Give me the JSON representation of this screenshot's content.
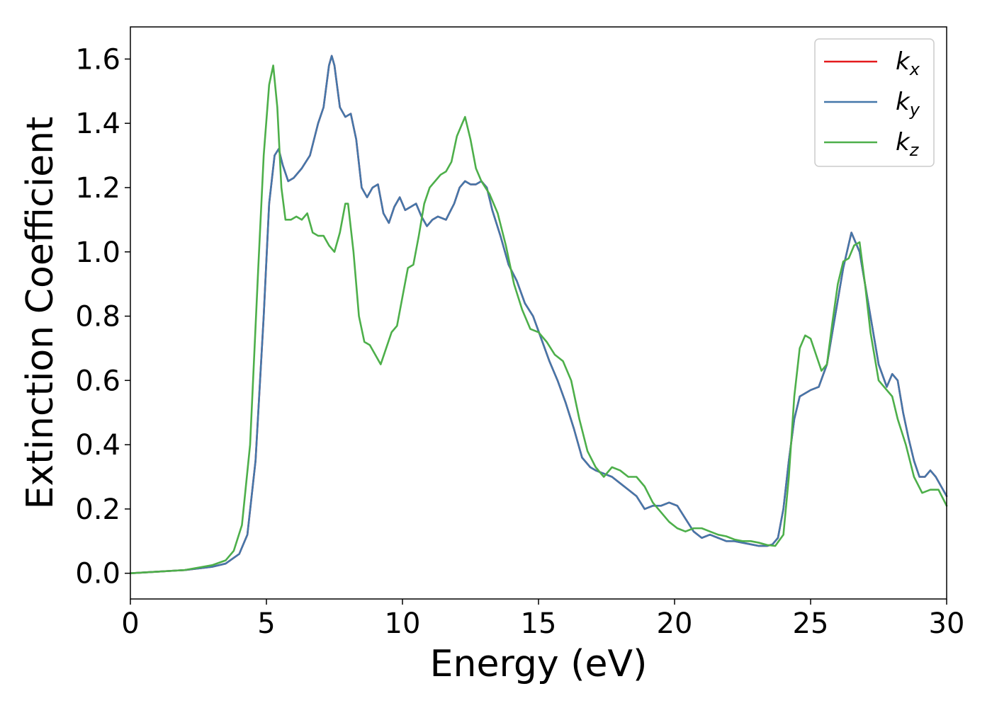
{
  "chart_data": {
    "type": "line",
    "xlabel": "Energy (eV)",
    "ylabel": "Extinction Coefficient",
    "xlim": [
      0,
      30
    ],
    "ylim": [
      -0.08,
      1.7
    ],
    "x_ticks": [
      "0",
      "5",
      "10",
      "15",
      "20",
      "25",
      "30"
    ],
    "y_ticks": [
      "0.0",
      "0.2",
      "0.4",
      "0.6",
      "0.8",
      "1.0",
      "1.2",
      "1.4",
      "1.6"
    ],
    "x_tick_values": [
      0,
      5,
      10,
      15,
      20,
      25,
      30
    ],
    "y_tick_values": [
      0.0,
      0.2,
      0.4,
      0.6,
      0.8,
      1.0,
      1.2,
      1.4,
      1.6
    ],
    "grid": false,
    "legend_position": "top-right",
    "series": [
      {
        "name": "k",
        "subscript": "x",
        "color": "#e41a1c",
        "x": [
          0,
          1,
          2,
          3,
          3.5,
          4,
          4.3,
          4.6,
          4.9,
          5.1,
          5.3,
          5.45,
          5.6,
          5.8,
          6.0,
          6.3,
          6.6,
          6.9,
          7.1,
          7.3,
          7.4,
          7.5,
          7.7,
          7.9,
          8.1,
          8.3,
          8.5,
          8.7,
          8.9,
          9.1,
          9.3,
          9.5,
          9.7,
          9.9,
          10.1,
          10.3,
          10.5,
          10.7,
          10.9,
          11.1,
          11.3,
          11.6,
          11.9,
          12.1,
          12.3,
          12.5,
          12.7,
          12.9,
          13.1,
          13.3,
          13.6,
          13.9,
          14.2,
          14.5,
          14.8,
          15.1,
          15.4,
          15.7,
          16.0,
          16.3,
          16.6,
          16.9,
          17.1,
          17.4,
          17.7,
          18.0,
          18.3,
          18.6,
          18.9,
          19.2,
          19.5,
          19.8,
          20.1,
          20.4,
          20.7,
          21.0,
          21.3,
          21.6,
          21.9,
          22.2,
          22.5,
          22.8,
          23.1,
          23.4,
          23.6,
          23.8,
          24.0,
          24.2,
          24.4,
          24.6,
          24.8,
          25.0,
          25.3,
          25.6,
          25.9,
          26.2,
          26.5,
          26.8,
          27.0,
          27.2,
          27.5,
          27.8,
          28.0,
          28.2,
          28.4,
          28.6,
          28.8,
          29.0,
          29.2,
          29.4,
          29.6,
          29.8,
          30.0
        ],
        "y": [
          0.0,
          0.005,
          0.01,
          0.02,
          0.03,
          0.06,
          0.12,
          0.35,
          0.8,
          1.15,
          1.3,
          1.32,
          1.27,
          1.22,
          1.23,
          1.26,
          1.3,
          1.4,
          1.45,
          1.58,
          1.61,
          1.58,
          1.45,
          1.42,
          1.43,
          1.35,
          1.2,
          1.17,
          1.2,
          1.21,
          1.12,
          1.09,
          1.14,
          1.17,
          1.13,
          1.14,
          1.15,
          1.11,
          1.08,
          1.1,
          1.11,
          1.1,
          1.15,
          1.2,
          1.22,
          1.21,
          1.21,
          1.22,
          1.2,
          1.13,
          1.05,
          0.96,
          0.91,
          0.84,
          0.8,
          0.73,
          0.66,
          0.6,
          0.53,
          0.45,
          0.36,
          0.33,
          0.32,
          0.31,
          0.3,
          0.28,
          0.26,
          0.24,
          0.2,
          0.21,
          0.21,
          0.22,
          0.21,
          0.17,
          0.13,
          0.11,
          0.12,
          0.11,
          0.1,
          0.1,
          0.095,
          0.09,
          0.085,
          0.085,
          0.09,
          0.11,
          0.2,
          0.35,
          0.48,
          0.55,
          0.56,
          0.57,
          0.58,
          0.65,
          0.8,
          0.95,
          1.06,
          1.0,
          0.9,
          0.8,
          0.65,
          0.58,
          0.62,
          0.6,
          0.5,
          0.42,
          0.35,
          0.3,
          0.3,
          0.32,
          0.3,
          0.27,
          0.24
        ]
      },
      {
        "name": "k",
        "subscript": "y",
        "color": "#4477aa",
        "x": [
          0,
          1,
          2,
          3,
          3.5,
          4,
          4.3,
          4.6,
          4.9,
          5.1,
          5.3,
          5.45,
          5.6,
          5.8,
          6.0,
          6.3,
          6.6,
          6.9,
          7.1,
          7.3,
          7.4,
          7.5,
          7.7,
          7.9,
          8.1,
          8.3,
          8.5,
          8.7,
          8.9,
          9.1,
          9.3,
          9.5,
          9.7,
          9.9,
          10.1,
          10.3,
          10.5,
          10.7,
          10.9,
          11.1,
          11.3,
          11.6,
          11.9,
          12.1,
          12.3,
          12.5,
          12.7,
          12.9,
          13.1,
          13.3,
          13.6,
          13.9,
          14.2,
          14.5,
          14.8,
          15.1,
          15.4,
          15.7,
          16.0,
          16.3,
          16.6,
          16.9,
          17.1,
          17.4,
          17.7,
          18.0,
          18.3,
          18.6,
          18.9,
          19.2,
          19.5,
          19.8,
          20.1,
          20.4,
          20.7,
          21.0,
          21.3,
          21.6,
          21.9,
          22.2,
          22.5,
          22.8,
          23.1,
          23.4,
          23.6,
          23.8,
          24.0,
          24.2,
          24.4,
          24.6,
          24.8,
          25.0,
          25.3,
          25.6,
          25.9,
          26.2,
          26.5,
          26.8,
          27.0,
          27.2,
          27.5,
          27.8,
          28.0,
          28.2,
          28.4,
          28.6,
          28.8,
          29.0,
          29.2,
          29.4,
          29.6,
          29.8,
          30.0
        ],
        "y": [
          0.0,
          0.005,
          0.01,
          0.02,
          0.03,
          0.06,
          0.12,
          0.35,
          0.8,
          1.15,
          1.3,
          1.32,
          1.27,
          1.22,
          1.23,
          1.26,
          1.3,
          1.4,
          1.45,
          1.58,
          1.61,
          1.58,
          1.45,
          1.42,
          1.43,
          1.35,
          1.2,
          1.17,
          1.2,
          1.21,
          1.12,
          1.09,
          1.14,
          1.17,
          1.13,
          1.14,
          1.15,
          1.11,
          1.08,
          1.1,
          1.11,
          1.1,
          1.15,
          1.2,
          1.22,
          1.21,
          1.21,
          1.22,
          1.2,
          1.13,
          1.05,
          0.96,
          0.91,
          0.84,
          0.8,
          0.73,
          0.66,
          0.6,
          0.53,
          0.45,
          0.36,
          0.33,
          0.32,
          0.31,
          0.3,
          0.28,
          0.26,
          0.24,
          0.2,
          0.21,
          0.21,
          0.22,
          0.21,
          0.17,
          0.13,
          0.11,
          0.12,
          0.11,
          0.1,
          0.1,
          0.095,
          0.09,
          0.085,
          0.085,
          0.09,
          0.11,
          0.2,
          0.35,
          0.48,
          0.55,
          0.56,
          0.57,
          0.58,
          0.65,
          0.8,
          0.95,
          1.06,
          1.0,
          0.9,
          0.8,
          0.65,
          0.58,
          0.62,
          0.6,
          0.5,
          0.42,
          0.35,
          0.3,
          0.3,
          0.32,
          0.3,
          0.27,
          0.24
        ]
      },
      {
        "name": "k",
        "subscript": "z",
        "color": "#4daf4a",
        "x": [
          0,
          1,
          2,
          3,
          3.5,
          3.8,
          4.1,
          4.4,
          4.7,
          4.9,
          5.1,
          5.25,
          5.4,
          5.55,
          5.7,
          5.9,
          6.1,
          6.3,
          6.5,
          6.7,
          6.9,
          7.1,
          7.3,
          7.5,
          7.7,
          7.9,
          8.0,
          8.2,
          8.4,
          8.6,
          8.8,
          9.0,
          9.2,
          9.4,
          9.6,
          9.8,
          10.0,
          10.2,
          10.4,
          10.6,
          10.8,
          11.0,
          11.2,
          11.4,
          11.6,
          11.8,
          12.0,
          12.2,
          12.3,
          12.5,
          12.7,
          12.9,
          13.2,
          13.5,
          13.8,
          14.1,
          14.4,
          14.7,
          15.0,
          15.3,
          15.6,
          15.9,
          16.2,
          16.5,
          16.8,
          17.1,
          17.4,
          17.7,
          18.0,
          18.3,
          18.6,
          18.9,
          19.2,
          19.5,
          19.8,
          20.1,
          20.4,
          20.7,
          21.0,
          21.3,
          21.6,
          21.9,
          22.2,
          22.5,
          22.8,
          23.1,
          23.4,
          23.7,
          24.0,
          24.2,
          24.4,
          24.6,
          24.8,
          25.0,
          25.2,
          25.4,
          25.6,
          25.8,
          26.0,
          26.2,
          26.4,
          26.6,
          26.8,
          27.0,
          27.2,
          27.5,
          27.8,
          28.0,
          28.2,
          28.5,
          28.8,
          29.1,
          29.4,
          29.7,
          30.0
        ],
        "y": [
          0.0,
          0.005,
          0.01,
          0.025,
          0.04,
          0.07,
          0.15,
          0.4,
          0.95,
          1.3,
          1.52,
          1.58,
          1.45,
          1.2,
          1.1,
          1.1,
          1.11,
          1.1,
          1.12,
          1.06,
          1.05,
          1.05,
          1.02,
          1.0,
          1.06,
          1.15,
          1.15,
          1.0,
          0.8,
          0.72,
          0.71,
          0.68,
          0.65,
          0.7,
          0.75,
          0.77,
          0.86,
          0.95,
          0.96,
          1.05,
          1.15,
          1.2,
          1.22,
          1.24,
          1.25,
          1.28,
          1.36,
          1.4,
          1.42,
          1.35,
          1.26,
          1.22,
          1.18,
          1.12,
          1.02,
          0.9,
          0.82,
          0.76,
          0.75,
          0.72,
          0.68,
          0.66,
          0.6,
          0.48,
          0.38,
          0.33,
          0.3,
          0.33,
          0.32,
          0.3,
          0.3,
          0.27,
          0.22,
          0.19,
          0.16,
          0.14,
          0.13,
          0.14,
          0.14,
          0.13,
          0.12,
          0.115,
          0.105,
          0.1,
          0.1,
          0.095,
          0.088,
          0.085,
          0.12,
          0.3,
          0.55,
          0.7,
          0.74,
          0.73,
          0.68,
          0.63,
          0.65,
          0.78,
          0.9,
          0.97,
          0.98,
          1.02,
          1.03,
          0.9,
          0.75,
          0.6,
          0.57,
          0.55,
          0.48,
          0.4,
          0.3,
          0.25,
          0.26,
          0.26,
          0.21
        ]
      }
    ]
  }
}
